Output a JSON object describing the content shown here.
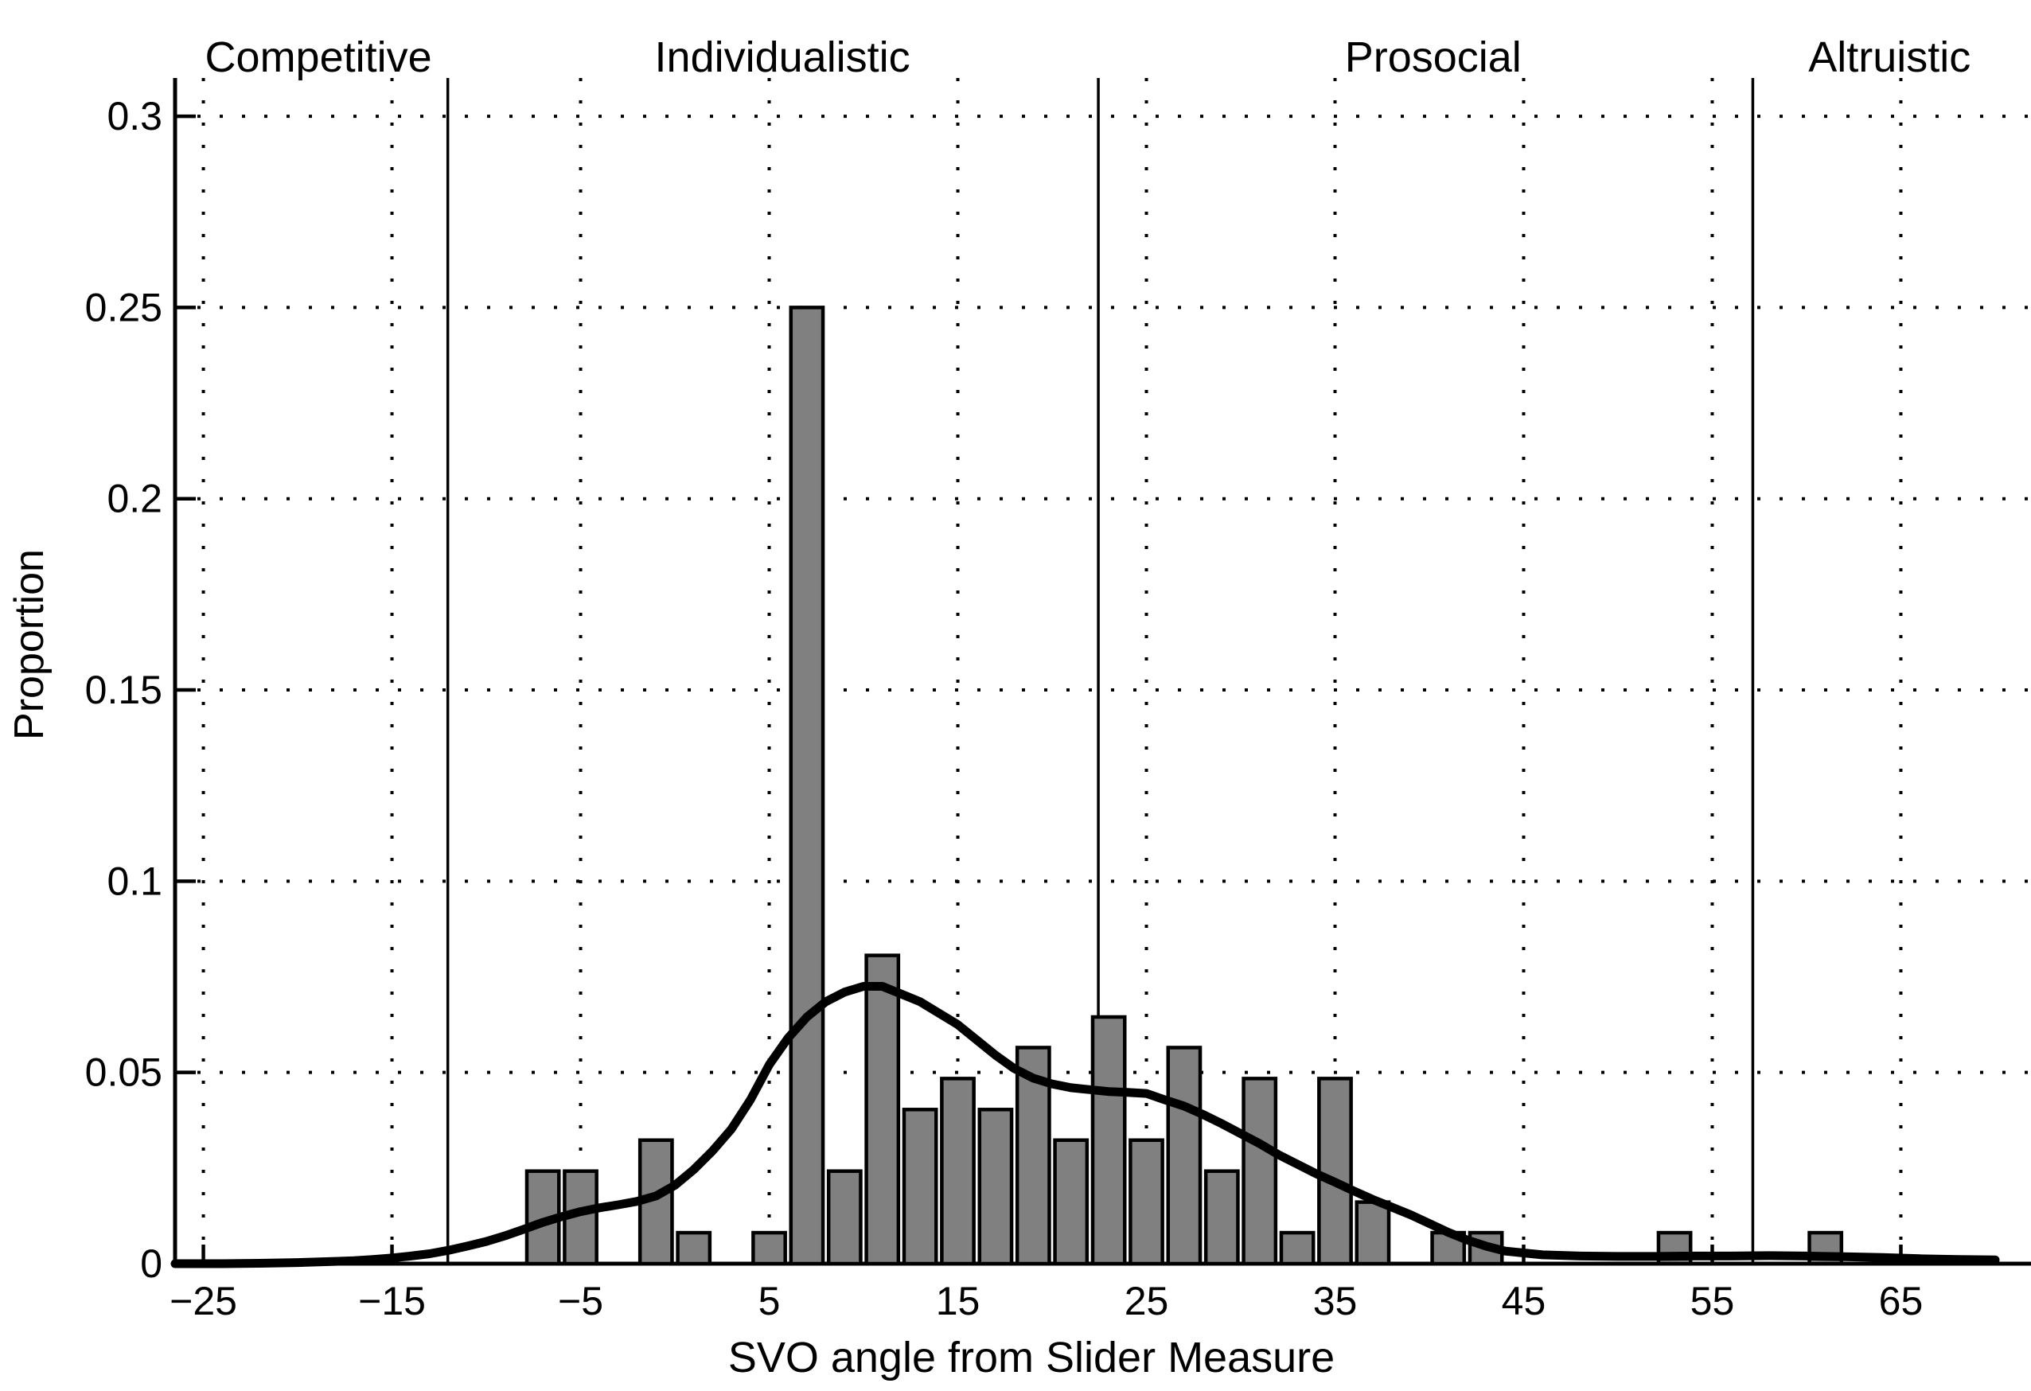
{
  "figure": {
    "background": "#ffffff",
    "bar_fill": "#808080",
    "bar_stroke": "#000000",
    "curve_color": "#000000",
    "axis_color": "#000000",
    "grid_color": "#000000"
  },
  "chart_data": {
    "type": "bar",
    "subtype": "histogram-with-density-curve",
    "title": "",
    "xlabel": "SVO angle from Slider Measure",
    "ylabel": "Proportion",
    "xlim": [
      -26.5,
      71.9
    ],
    "ylim": [
      0,
      0.31
    ],
    "grid": true,
    "legend": false,
    "x_ticks": [
      -25,
      -15,
      -5,
      5,
      15,
      25,
      35,
      45,
      55,
      65
    ],
    "x_tick_labels": [
      "−25",
      "−15",
      "−5",
      "5",
      "15",
      "25",
      "35",
      "45",
      "55",
      "65"
    ],
    "y_ticks": [
      0,
      0.05,
      0.1,
      0.15,
      0.2,
      0.25,
      0.3
    ],
    "y_tick_labels": [
      "0",
      "0.05",
      "0.1",
      "0.15",
      "0.2",
      "0.25",
      "0.3"
    ],
    "bar_width": 1.7,
    "categories": [
      -7,
      -5,
      -1,
      1,
      5,
      7,
      9,
      11,
      13,
      15,
      17,
      19,
      21,
      23,
      25,
      27,
      29,
      31,
      33,
      35,
      37,
      41,
      43,
      53,
      61
    ],
    "values": [
      0.0242,
      0.0242,
      0.0323,
      0.0081,
      0.0081,
      0.25,
      0.0242,
      0.0806,
      0.0403,
      0.0484,
      0.0403,
      0.0565,
      0.0323,
      0.0645,
      0.0323,
      0.0565,
      0.0242,
      0.0484,
      0.0081,
      0.0484,
      0.0161,
      0.0081,
      0.0081,
      0.0081,
      0.0081
    ],
    "density_curve": {
      "x": [
        -26.5,
        -24,
        -22,
        -20,
        -18,
        -17,
        -16,
        -15,
        -14,
        -13,
        -12,
        -11,
        -10,
        -9,
        -8,
        -7,
        -6,
        -5,
        -4,
        -3,
        -2,
        -1,
        0,
        1,
        2,
        3,
        4,
        5,
        6,
        7,
        8,
        9,
        10,
        11,
        12,
        13,
        14,
        15,
        16,
        17,
        18,
        19,
        20,
        21,
        22,
        23,
        24,
        25,
        26,
        27,
        28,
        29,
        30,
        31,
        32,
        33,
        34,
        35,
        36,
        37,
        38,
        39,
        40,
        41,
        42,
        43,
        44,
        46,
        48,
        50,
        52,
        54,
        56,
        58,
        60,
        62,
        64,
        66,
        68,
        70
      ],
      "y": [
        0,
        0,
        0.0001,
        0.0003,
        0.0006,
        0.0008,
        0.0011,
        0.0015,
        0.002,
        0.0026,
        0.0035,
        0.0046,
        0.0058,
        0.0073,
        0.009,
        0.0108,
        0.0123,
        0.0136,
        0.0146,
        0.0154,
        0.0163,
        0.0177,
        0.0205,
        0.0246,
        0.0295,
        0.0352,
        0.0428,
        0.052,
        0.059,
        0.0645,
        0.0685,
        0.071,
        0.0725,
        0.0725,
        0.0705,
        0.0685,
        0.0655,
        0.0625,
        0.0585,
        0.0545,
        0.051,
        0.0485,
        0.047,
        0.046,
        0.0455,
        0.045,
        0.0448,
        0.0445,
        0.0428,
        0.0412,
        0.039,
        0.0366,
        0.034,
        0.0314,
        0.0285,
        0.026,
        0.0235,
        0.0213,
        0.019,
        0.0168,
        0.0148,
        0.0128,
        0.0105,
        0.0082,
        0.0062,
        0.0046,
        0.0033,
        0.0023,
        0.002,
        0.0019,
        0.0019,
        0.002,
        0.002,
        0.0021,
        0.002,
        0.0018,
        0.0016,
        0.0013,
        0.0011,
        0.001
      ]
    },
    "region_boundaries": [
      -12.04,
      22.45,
      57.15
    ],
    "region_labels": [
      {
        "label": "Competitive",
        "x": -18.9
      },
      {
        "label": "Individualistic",
        "x": 5.7
      },
      {
        "label": "Prosocial",
        "x": 40.2
      },
      {
        "label": "Altruistic",
        "x": 64.4
      }
    ]
  }
}
